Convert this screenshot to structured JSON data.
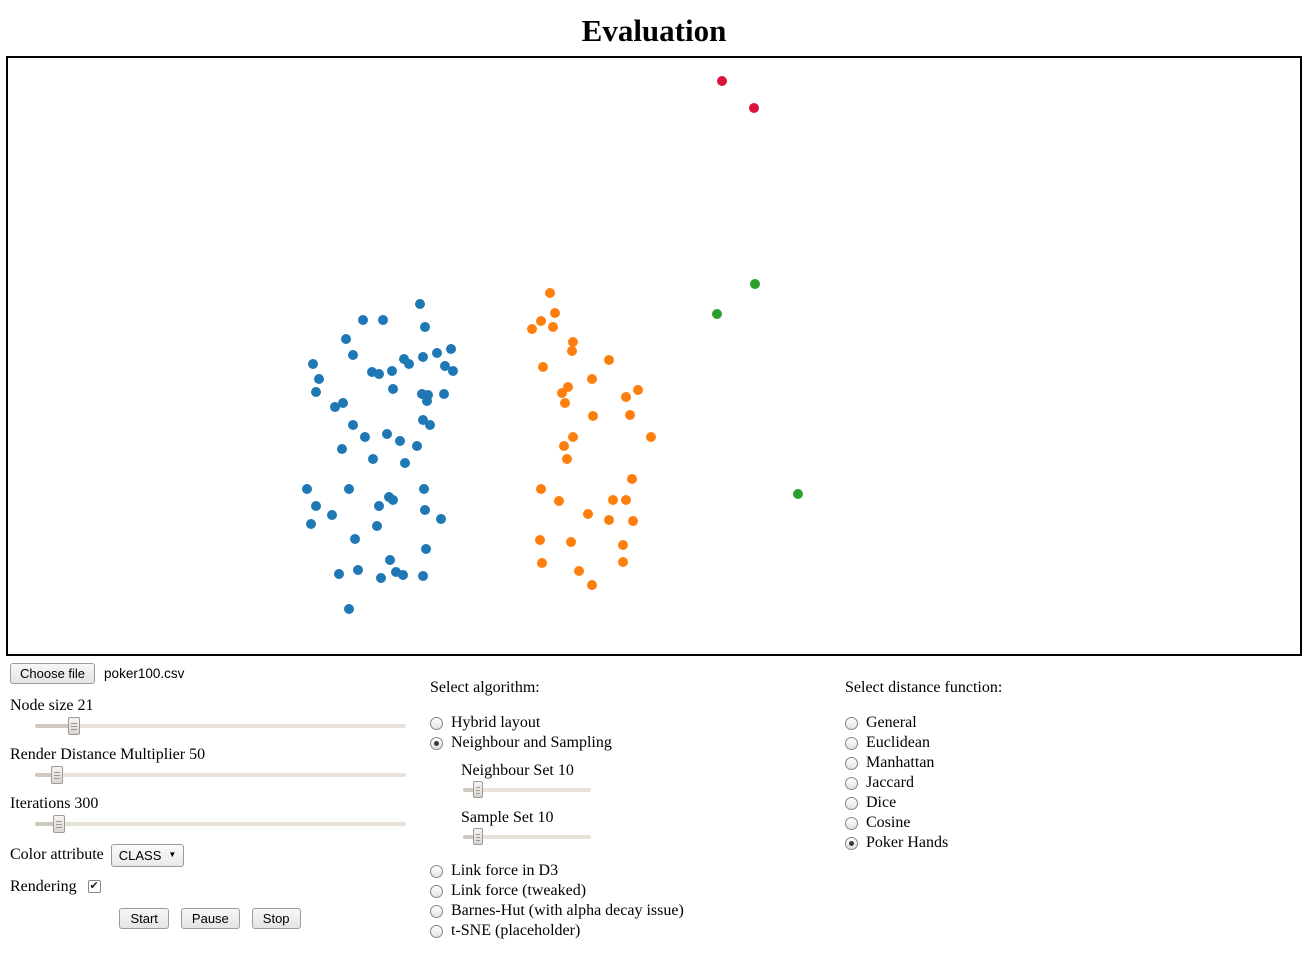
{
  "page": {
    "title": "Evaluation"
  },
  "file_input": {
    "button_label": "Choose file",
    "filename": "poker100.csv"
  },
  "left_sliders": [
    {
      "name": "node-size",
      "label": "Node size",
      "value": "21",
      "percent": 10.5
    },
    {
      "name": "render-distance-multiplier",
      "label": "Render Distance Multiplier",
      "value": "50",
      "percent": 6
    },
    {
      "name": "iterations",
      "label": "Iterations",
      "value": "300",
      "percent": 6.5
    }
  ],
  "color_attribute": {
    "label": "Color attribute",
    "selected": "CLASS",
    "arrow": "▼"
  },
  "rendering": {
    "label": "Rendering",
    "checked": true,
    "check_glyph": "✔"
  },
  "action_buttons": [
    {
      "label": "Start"
    },
    {
      "label": "Pause"
    },
    {
      "label": "Stop"
    }
  ],
  "algorithm": {
    "heading": "Select algorithm:",
    "options_top": [
      {
        "label": "Hybrid layout",
        "selected": false
      },
      {
        "label": "Neighbour and Sampling",
        "selected": true
      }
    ],
    "sub_sliders": [
      {
        "name": "neighbour-set",
        "label": "Neighbour Set",
        "value": "10",
        "percent": 11.5
      },
      {
        "name": "sample-set",
        "label": "Sample Set",
        "value": "10",
        "percent": 11.5
      }
    ],
    "options_bottom": [
      {
        "label": "Link force in D3",
        "selected": false
      },
      {
        "label": "Link force (tweaked)",
        "selected": false
      },
      {
        "label": "Barnes-Hut (with alpha decay issue)",
        "selected": false
      },
      {
        "label": "t-SNE (placeholder)",
        "selected": false
      }
    ]
  },
  "distance_function": {
    "heading": "Select distance function:",
    "options": [
      {
        "label": "General",
        "selected": false
      },
      {
        "label": "Euclidean",
        "selected": false
      },
      {
        "label": "Manhattan",
        "selected": false
      },
      {
        "label": "Jaccard",
        "selected": false
      },
      {
        "label": "Dice",
        "selected": false
      },
      {
        "label": "Cosine",
        "selected": false
      },
      {
        "label": "Poker Hands",
        "selected": true
      }
    ]
  },
  "chart_data": {
    "type": "scatter",
    "title": "Evaluation",
    "description": "Force-directed layout of poker100.csv nodes colored by CLASS; coordinates are pixels inside the canvas (no axes, no gridlines, no legend).",
    "point_radius": 5,
    "series": [
      {
        "name": "class-blue",
        "color": "#1f77b4",
        "points": [
          [
            412,
            246
          ],
          [
            355,
            262
          ],
          [
            375,
            262
          ],
          [
            417,
            269
          ],
          [
            338,
            281
          ],
          [
            345,
            297
          ],
          [
            443,
            291
          ],
          [
            429,
            295
          ],
          [
            415,
            299
          ],
          [
            396,
            301
          ],
          [
            401,
            306
          ],
          [
            305,
            306
          ],
          [
            311,
            321
          ],
          [
            364,
            314
          ],
          [
            371,
            316
          ],
          [
            384,
            313
          ],
          [
            437,
            308
          ],
          [
            445,
            313
          ],
          [
            385,
            331
          ],
          [
            414,
            336
          ],
          [
            420,
            337
          ],
          [
            436,
            336
          ],
          [
            308,
            334
          ],
          [
            335,
            345
          ],
          [
            327,
            349
          ],
          [
            419,
            343
          ],
          [
            415,
            362
          ],
          [
            422,
            367
          ],
          [
            345,
            367
          ],
          [
            357,
            379
          ],
          [
            379,
            376
          ],
          [
            392,
            383
          ],
          [
            409,
            388
          ],
          [
            334,
            391
          ],
          [
            365,
            401
          ],
          [
            397,
            405
          ],
          [
            299,
            431
          ],
          [
            341,
            431
          ],
          [
            416,
            431
          ],
          [
            381,
            439
          ],
          [
            385,
            442
          ],
          [
            308,
            448
          ],
          [
            371,
            448
          ],
          [
            417,
            452
          ],
          [
            324,
            457
          ],
          [
            303,
            466
          ],
          [
            369,
            468
          ],
          [
            347,
            481
          ],
          [
            433,
            461
          ],
          [
            418,
            491
          ],
          [
            382,
            502
          ],
          [
            331,
            516
          ],
          [
            350,
            512
          ],
          [
            373,
            520
          ],
          [
            388,
            514
          ],
          [
            395,
            517
          ],
          [
            415,
            518
          ],
          [
            341,
            551
          ]
        ]
      },
      {
        "name": "class-orange",
        "color": "#ff7f0e",
        "points": [
          [
            542,
            235
          ],
          [
            547,
            255
          ],
          [
            533,
            263
          ],
          [
            524,
            271
          ],
          [
            545,
            269
          ],
          [
            565,
            284
          ],
          [
            564,
            293
          ],
          [
            601,
            302
          ],
          [
            535,
            309
          ],
          [
            584,
            321
          ],
          [
            560,
            329
          ],
          [
            554,
            335
          ],
          [
            630,
            332
          ],
          [
            557,
            345
          ],
          [
            618,
            339
          ],
          [
            585,
            358
          ],
          [
            622,
            357
          ],
          [
            643,
            379
          ],
          [
            565,
            379
          ],
          [
            556,
            388
          ],
          [
            559,
            401
          ],
          [
            624,
            421
          ],
          [
            533,
            431
          ],
          [
            551,
            443
          ],
          [
            605,
            442
          ],
          [
            618,
            442
          ],
          [
            580,
            456
          ],
          [
            601,
            462
          ],
          [
            625,
            463
          ],
          [
            532,
            482
          ],
          [
            563,
            484
          ],
          [
            615,
            487
          ],
          [
            534,
            505
          ],
          [
            615,
            504
          ],
          [
            571,
            513
          ],
          [
            584,
            527
          ]
        ]
      },
      {
        "name": "class-green",
        "color": "#2ca02c",
        "points": [
          [
            747,
            226
          ],
          [
            709,
            256
          ],
          [
            790,
            436
          ]
        ]
      },
      {
        "name": "class-red",
        "color": "#dc143c",
        "points": [
          [
            714,
            23
          ],
          [
            746,
            50
          ]
        ]
      }
    ]
  }
}
